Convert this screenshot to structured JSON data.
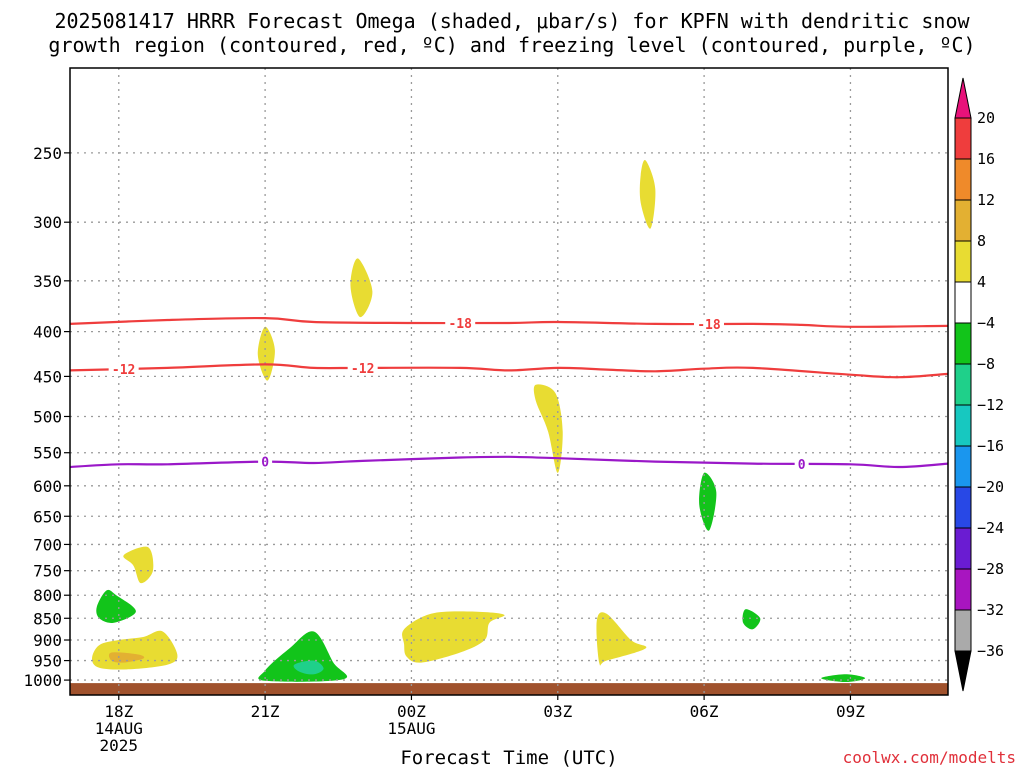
{
  "title": {
    "line1": "2025081417 HRRR Forecast Omega (shaded, μbar/s) for KPFN with dendritic snow",
    "line2": "growth region (contoured, red, ºC) and freezing level (contoured, purple, ºC)"
  },
  "watermark": "coolwx.com/modelts",
  "chart_data": {
    "type": "heatmap",
    "xlabel": "Forecast Time (UTC)",
    "x_ticks": [
      {
        "hour": 1,
        "labels": [
          "18Z",
          "14AUG",
          "2025"
        ]
      },
      {
        "hour": 4,
        "labels": [
          "21Z"
        ]
      },
      {
        "hour": 7,
        "labels": [
          "00Z",
          "15AUG"
        ]
      },
      {
        "hour": 10,
        "labels": [
          "03Z"
        ]
      },
      {
        "hour": 13,
        "labels": [
          "06Z"
        ]
      },
      {
        "hour": 16,
        "labels": [
          "09Z"
        ]
      }
    ],
    "x_range": [
      0,
      18
    ],
    "y_scale": "log-pressure",
    "y_ticks": [
      250,
      300,
      350,
      400,
      450,
      500,
      550,
      600,
      650,
      700,
      750,
      800,
      850,
      900,
      950,
      1000
    ],
    "y_range": [
      200,
      1040
    ],
    "grid": true,
    "colorbar": {
      "levels": [
        "20",
        "16",
        "12",
        "8",
        "4",
        "−4",
        "−8",
        "−12",
        "−16",
        "−20",
        "−24",
        "−28",
        "−32",
        "−36"
      ],
      "top_color": "#e8127a",
      "bottom_color": "#000000",
      "bands": [
        "#ef3d3d",
        "#ef8a2a",
        "#e3b032",
        "#e8dc32",
        "#ffffff",
        "#12c41a",
        "#1fd08a",
        "#17c8c0",
        "#1a96ee",
        "#2848e6",
        "#6a1cd2",
        "#a815c0",
        "#aaaaaa"
      ]
    },
    "omega_shading": [
      {
        "level": "4 to 8",
        "color": "#e8dc32",
        "points": [
          [
            11.8,
            255
          ],
          [
            12.0,
            275
          ],
          [
            11.9,
            305
          ],
          [
            11.7,
            285
          ],
          [
            11.7,
            265
          ]
        ]
      },
      {
        "level": "4 to 8",
        "color": "#e8dc32",
        "points": [
          [
            5.9,
            330
          ],
          [
            6.2,
            360
          ],
          [
            5.95,
            385
          ],
          [
            5.75,
            355
          ]
        ]
      },
      {
        "level": "4 to 8",
        "color": "#e8dc32",
        "points": [
          [
            4.0,
            395
          ],
          [
            4.2,
            420
          ],
          [
            4.05,
            455
          ],
          [
            3.85,
            425
          ]
        ]
      },
      {
        "level": "4 to 8",
        "color": "#e8dc32",
        "points": [
          [
            9.55,
            460
          ],
          [
            9.95,
            470
          ],
          [
            10.1,
            520
          ],
          [
            10.0,
            580
          ],
          [
            9.8,
            520
          ],
          [
            9.55,
            480
          ]
        ]
      },
      {
        "level": "4 to 8",
        "color": "#e8dc32",
        "points": [
          [
            1.1,
            720
          ],
          [
            1.6,
            705
          ],
          [
            1.7,
            750
          ],
          [
            1.45,
            775
          ],
          [
            1.3,
            740
          ]
        ]
      },
      {
        "level": "4 to 8",
        "color": "#e8dc32",
        "points": [
          [
            0.45,
            945
          ],
          [
            0.6,
            912
          ],
          [
            1.0,
            900
          ],
          [
            1.5,
            893
          ],
          [
            1.9,
            880
          ],
          [
            2.2,
            935
          ],
          [
            2.0,
            960
          ],
          [
            1.2,
            972
          ],
          [
            0.6,
            968
          ]
        ]
      },
      {
        "level": "4 to 8",
        "color": "#e8dc32",
        "points": [
          [
            6.85,
            875
          ],
          [
            7.4,
            840
          ],
          [
            8.2,
            835
          ],
          [
            8.9,
            842
          ],
          [
            8.6,
            860
          ],
          [
            8.5,
            900
          ],
          [
            8.0,
            930
          ],
          [
            7.2,
            955
          ],
          [
            6.9,
            940
          ],
          [
            6.85,
            910
          ]
        ]
      },
      {
        "level": "4 to 8",
        "color": "#e8dc32",
        "points": [
          [
            10.8,
            855
          ],
          [
            11.0,
            840
          ],
          [
            11.5,
            900
          ],
          [
            11.8,
            920
          ],
          [
            11.0,
            950
          ],
          [
            10.85,
            955
          ]
        ]
      },
      {
        "level": "8 to 12",
        "color": "#e3b032",
        "points": [
          [
            0.85,
            930
          ],
          [
            1.4,
            935
          ],
          [
            1.5,
            945
          ],
          [
            1.1,
            955
          ],
          [
            0.85,
            950
          ]
        ]
      },
      {
        "level": "-4 to -8",
        "color": "#12c41a",
        "points": [
          [
            0.55,
            825
          ],
          [
            0.75,
            790
          ],
          [
            0.95,
            800
          ],
          [
            1.35,
            835
          ],
          [
            0.9,
            860
          ],
          [
            0.6,
            850
          ]
        ]
      },
      {
        "level": "-4 to -8",
        "color": "#12c41a",
        "points": [
          [
            13.0,
            580
          ],
          [
            13.25,
            610
          ],
          [
            13.1,
            675
          ],
          [
            12.9,
            630
          ]
        ]
      },
      {
        "level": "-4 to -8",
        "color": "#12c41a",
        "points": [
          [
            13.85,
            830
          ],
          [
            14.15,
            850
          ],
          [
            14.0,
            875
          ],
          [
            13.8,
            860
          ]
        ]
      },
      {
        "level": "-4 to -8",
        "color": "#12c41a",
        "points": [
          [
            4.0,
            975
          ],
          [
            4.5,
            920
          ],
          [
            5.0,
            880
          ],
          [
            5.4,
            955
          ],
          [
            5.6,
            998
          ],
          [
            4.0,
            1002
          ]
        ]
      },
      {
        "level": "-4 to -8",
        "color": "#12c41a",
        "points": [
          [
            15.4,
            995
          ],
          [
            15.9,
            985
          ],
          [
            16.3,
            995
          ],
          [
            15.9,
            1005
          ]
        ]
      },
      {
        "level": "-8 to -12",
        "color": "#1fd08a",
        "points": [
          [
            4.6,
            960
          ],
          [
            5.0,
            950
          ],
          [
            5.2,
            970
          ],
          [
            5.0,
            985
          ],
          [
            4.7,
            978
          ]
        ]
      }
    ],
    "temperature_contours": [
      {
        "label": "-18",
        "color": "#ef3d3d",
        "label_hours": [
          8.0,
          13.1
        ],
        "points": [
          [
            0,
            392
          ],
          [
            2,
            388
          ],
          [
            4,
            386
          ],
          [
            5,
            390
          ],
          [
            7,
            391
          ],
          [
            9,
            391
          ],
          [
            10,
            390
          ],
          [
            12,
            392
          ],
          [
            14,
            392
          ],
          [
            15,
            393
          ],
          [
            16,
            395
          ],
          [
            18,
            394
          ]
        ]
      },
      {
        "label": "-12",
        "color": "#ef3d3d",
        "label_hours": [
          1.1,
          6.0
        ],
        "points": [
          [
            0,
            443
          ],
          [
            2,
            440
          ],
          [
            4,
            436
          ],
          [
            5,
            440
          ],
          [
            6,
            440
          ],
          [
            8,
            440
          ],
          [
            9,
            443
          ],
          [
            10,
            440
          ],
          [
            11,
            442
          ],
          [
            12,
            444
          ],
          [
            13,
            441
          ],
          [
            14,
            440
          ],
          [
            16,
            448
          ],
          [
            17,
            451
          ],
          [
            18,
            447
          ]
        ]
      },
      {
        "label": "0",
        "color": "#9a18c8",
        "label_hours": [
          4.0,
          15.0
        ],
        "points": [
          [
            0,
            571
          ],
          [
            1,
            567
          ],
          [
            2,
            567
          ],
          [
            4,
            563
          ],
          [
            5,
            565
          ],
          [
            6,
            562
          ],
          [
            8,
            557
          ],
          [
            9,
            556
          ],
          [
            10,
            558
          ],
          [
            12,
            563
          ],
          [
            14,
            566
          ],
          [
            16,
            567
          ],
          [
            17,
            571
          ],
          [
            18,
            566
          ]
        ]
      }
    ],
    "ground": {
      "color": "#a0522d",
      "pressure_top": 1008
    }
  }
}
